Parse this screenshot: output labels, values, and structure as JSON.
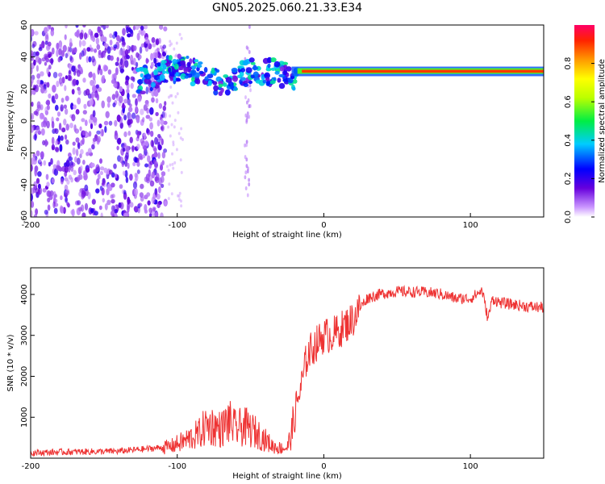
{
  "title": "GN05.2025.060.21.33.E34",
  "chart_data": [
    {
      "type": "heatmap",
      "xlabel": "Height of straight line (km)",
      "ylabel": "Frequency (Hz)",
      "xlim": [
        -200,
        150
      ],
      "ylim": [
        -60,
        60
      ],
      "x_ticks": [
        -200,
        -100,
        0,
        100
      ],
      "y_ticks": [
        -60,
        -40,
        -20,
        0,
        20,
        40,
        60
      ],
      "colorbar": {
        "label": "Normalized spectral amplitude",
        "range": [
          0,
          1
        ],
        "ticks": [
          0.0,
          0.2,
          0.4,
          0.6,
          0.8
        ]
      },
      "features": [
        {
          "description_values": "strong narrowband line",
          "x_range": [
            -20,
            150
          ],
          "frequency": 31,
          "amplitude": 0.9
        },
        {
          "description_values": "patchy mid-amplitude band",
          "x_range": [
            -125,
            -20
          ],
          "frequency_range": [
            25,
            40
          ],
          "amplitude": 0.35
        },
        {
          "description_values": "low-amplitude broadband noise",
          "x_range": [
            -200,
            -108
          ],
          "frequency_range": [
            -60,
            60
          ],
          "amplitude": 0.1
        }
      ]
    },
    {
      "type": "line",
      "xlabel": "Height of straight line (km)",
      "ylabel": "SNR (10 * v/v)",
      "xlim": [
        -200,
        150
      ],
      "ylim": [
        0,
        4650
      ],
      "x_ticks": [
        -200,
        -100,
        0,
        100
      ],
      "y_ticks": [
        1000,
        2000,
        3000,
        4000
      ],
      "series": [
        {
          "color": "#ee3333",
          "x": [
            -200,
            -180,
            -160,
            -140,
            -120,
            -105,
            -95,
            -85,
            -80,
            -75,
            -70,
            -65,
            -60,
            -55,
            -50,
            -45,
            -40,
            -35,
            -30,
            -25,
            -22,
            -20,
            -18,
            -15,
            -12,
            -10,
            -5,
            0,
            5,
            10,
            15,
            20,
            25,
            30,
            40,
            50,
            60,
            70,
            80,
            90,
            100,
            108,
            112,
            115,
            120,
            130,
            140,
            150
          ],
          "values": [
            130,
            150,
            160,
            170,
            230,
            280,
            420,
            600,
            800,
            780,
            700,
            900,
            700,
            780,
            700,
            600,
            450,
            300,
            250,
            250,
            600,
            1000,
            1400,
            1800,
            2400,
            2600,
            2800,
            3000,
            3000,
            3100,
            3250,
            3400,
            3700,
            3920,
            4020,
            4070,
            4060,
            4050,
            4010,
            3900,
            3900,
            4100,
            3400,
            3900,
            3800,
            3750,
            3700,
            3680
          ]
        }
      ]
    }
  ]
}
